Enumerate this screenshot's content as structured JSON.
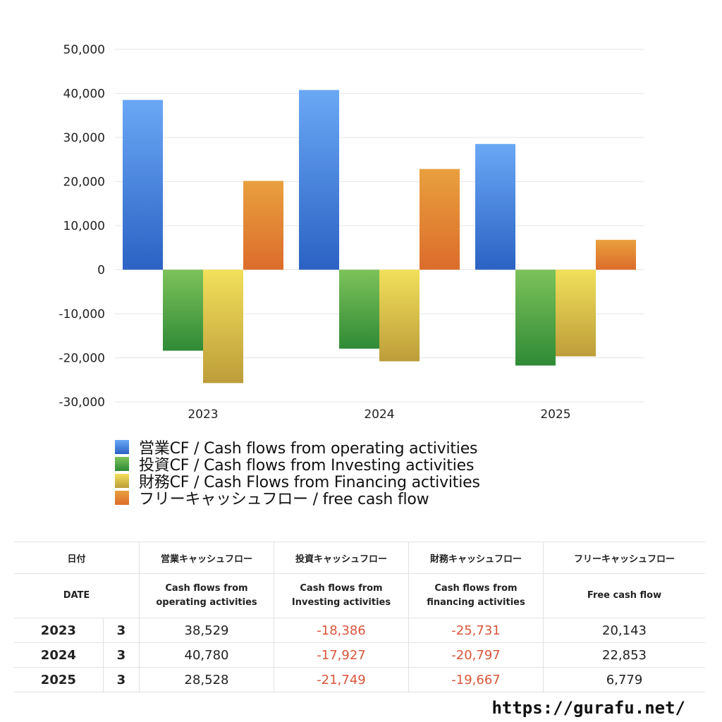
{
  "chart_data": {
    "type": "bar",
    "categories": [
      "2023",
      "2024",
      "2025"
    ],
    "ylim": [
      -30000,
      50000
    ],
    "yticks": [
      50000,
      40000,
      30000,
      20000,
      10000,
      0,
      -10000,
      -20000,
      -30000
    ],
    "ytick_labels": [
      "50,000",
      "40,000",
      "30,000",
      "20,000",
      "10,000",
      "0",
      "-10,000",
      "-20,000",
      "-30,000"
    ],
    "grid": true,
    "legend_position": "bottom",
    "series": [
      {
        "name": "営業CF / Cash flows from operating activities",
        "values": [
          38529,
          40780,
          28528
        ],
        "color_top": "#6aa8f5",
        "color_bottom": "#2b62c4"
      },
      {
        "name": "投資CF / Cash flows from Investing activities",
        "values": [
          -18386,
          -17927,
          -21749
        ],
        "color_top": "#7dc25a",
        "color_bottom": "#2f8a36"
      },
      {
        "name": "財務CF / Cash Flows from Financing activities",
        "values": [
          -25731,
          -20797,
          -19667
        ],
        "color_top": "#f2e05a",
        "color_bottom": "#bd9d3a"
      },
      {
        "name": "フリーキャッシュフロー / free cash flow",
        "values": [
          20143,
          22853,
          6779
        ],
        "color_top": "#e9a03e",
        "color_bottom": "#dc6c2b"
      }
    ]
  },
  "table": {
    "header_jp": [
      "日付",
      "営業キャッシュフロー",
      "投資キャッシュフロー",
      "財務キャッシュフロー",
      "フリーキャッシュフロー"
    ],
    "header_en": [
      "DATE",
      "Cash flows from operating activities",
      "Cash flows from Investing activities",
      "Cash flows from financing activities",
      "Free cash flow"
    ],
    "header_en_lines": [
      [
        "DATE",
        ""
      ],
      [
        "Cash flows from",
        "operating activities"
      ],
      [
        "Cash flows from",
        "Investing activities"
      ],
      [
        "Cash flows from",
        "financing activities"
      ],
      [
        "Free cash flow",
        ""
      ]
    ],
    "rows": [
      {
        "year": "2023",
        "month": "3",
        "values": [
          "38,529",
          "-18,386",
          "-25,731",
          "20,143"
        ]
      },
      {
        "year": "2024",
        "month": "3",
        "values": [
          "40,780",
          "-17,927",
          "-20,797",
          "22,853"
        ]
      },
      {
        "year": "2025",
        "month": "3",
        "values": [
          "28,528",
          "-21,749",
          "-19,667",
          "6,779"
        ]
      }
    ]
  },
  "site_url": "https://gurafu.net/"
}
